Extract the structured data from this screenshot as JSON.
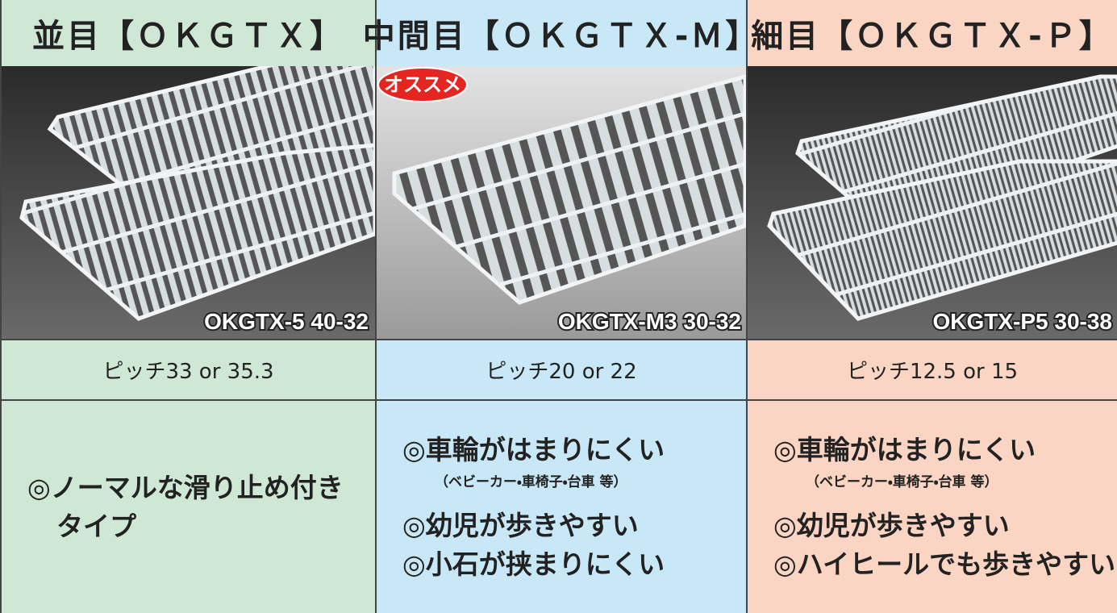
{
  "badge": "オススメ",
  "columns": [
    {
      "title": "並目【ＯＫＧＴＸ】",
      "image_label": "OKGTX-5 40-32",
      "pitch": "ピッチ33 or 35.3",
      "features": [
        {
          "text": "◎ノーマルな滑り止め付き"
        },
        {
          "text": "タイプ",
          "continued": true
        }
      ]
    },
    {
      "title": "中間目【ＯＫＧＴＸ-Ｍ】",
      "image_label": "OKGTX-M3 30-32",
      "pitch": "ピッチ20 or 22",
      "features": [
        {
          "text": "◎車輪がはまりにくい"
        },
        {
          "note": "（ベビーカー・車椅子・台車 等）"
        },
        {
          "text": "◎幼児が歩きやすい"
        },
        {
          "text": "◎小石が挟まりにくい"
        }
      ]
    },
    {
      "title": "細目【ＯＫＧＴＸ-Ｐ】",
      "image_label": "OKGTX-P5 30-38",
      "pitch": "ピッチ12.5 or 15",
      "features": [
        {
          "text": "◎車輪がはまりにくい"
        },
        {
          "note": "（ベビーカー・車椅子・台車 等）"
        },
        {
          "text": "◎幼児が歩きやすい"
        },
        {
          "text": "◎ハイヒールでも歩きやすい"
        }
      ]
    }
  ]
}
